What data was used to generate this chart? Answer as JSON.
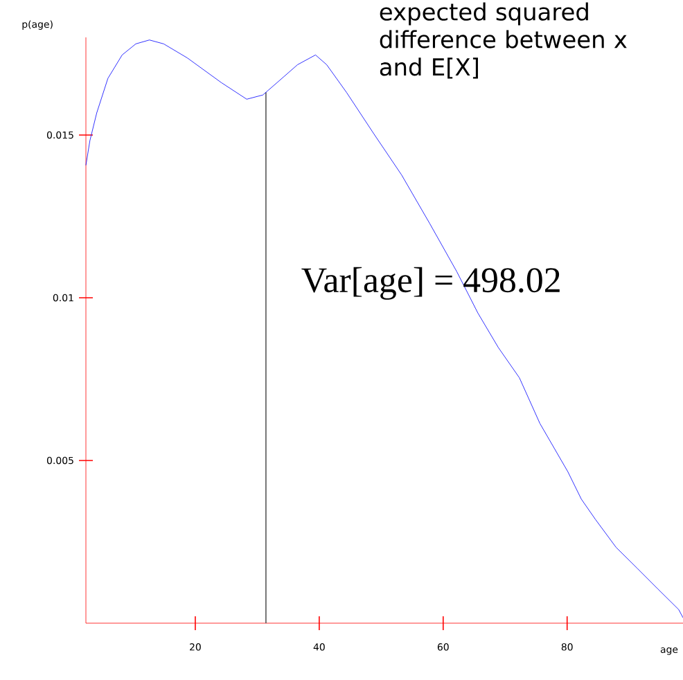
{
  "chart_data": {
    "type": "line",
    "xlabel": "age",
    "ylabel": "p(age)",
    "annotations": [
      "expected squared difference between x and E[X]",
      "Var[age] = 498.02"
    ],
    "x": [
      2.35,
      3.0,
      4.1,
      5.9,
      8.2,
      10.4,
      12.6,
      14.9,
      18.7,
      24.2,
      28.3,
      30.9,
      33.2,
      36.5,
      39.4,
      41.2,
      44.4,
      48.8,
      53.3,
      57.8,
      62.2,
      65.6,
      68.9,
      72.3,
      75.6,
      80.1,
      82.3,
      84.6,
      87.9,
      91.3,
      94.6,
      98.0,
      98.7
    ],
    "series": [
      {
        "color": "#0000ff",
        "values": [
          0.01407,
          0.01483,
          0.01568,
          0.01674,
          0.01746,
          0.0178,
          0.01792,
          0.0178,
          0.01737,
          0.01661,
          0.0161,
          0.01623,
          0.01661,
          0.01716,
          0.01746,
          0.01716,
          0.01631,
          0.01504,
          0.01377,
          0.01229,
          0.0108,
          0.00953,
          0.00847,
          0.00754,
          0.00614,
          0.00466,
          0.00381,
          0.00318,
          0.00233,
          0.00169,
          0.00106,
          0.00042,
          0.00017
        ]
      }
    ],
    "xlim": [
      2.35,
      98.7
    ],
    "ylim": [
      0,
      0.018
    ],
    "xticks": [
      20,
      40,
      60,
      80
    ],
    "yticks": [
      0.005,
      0.01,
      0.015
    ],
    "ref_lines": [
      {
        "axis": "x",
        "value": 31.4,
        "color": "#555555"
      }
    ],
    "grid": false,
    "marker": "none",
    "line_style": "solid"
  }
}
